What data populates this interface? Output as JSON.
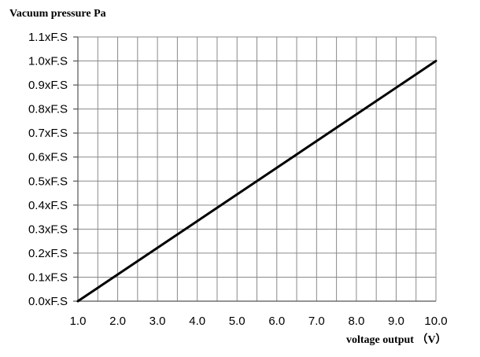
{
  "chart_data": {
    "type": "line",
    "title": "Vacuum pressure Pa",
    "xlabel": "voltage output （V）",
    "ylabel": "",
    "xlim": [
      1.0,
      10.0
    ],
    "ylim": [
      0.0,
      1.1
    ],
    "grid": true,
    "x_ticks": [
      "1.0",
      "2.0",
      "3.0",
      "4.0",
      "5.0",
      "6.0",
      "7.0",
      "8.0",
      "9.0",
      "10.0"
    ],
    "y_ticks": [
      "0.0xF.S",
      "0.1xF.S",
      "0.2xF.S",
      "0.3xF.S",
      "0.4xF.S",
      "0.5xF.S",
      "0.6xF.S",
      "0.7xF.S",
      "0.8xF.S",
      "0.9xF.S",
      "1.0xF.S",
      "1.1xF.S"
    ],
    "x_tick_values": [
      1,
      2,
      3,
      4,
      5,
      6,
      7,
      8,
      9,
      10
    ],
    "y_tick_values": [
      0.0,
      0.1,
      0.2,
      0.3,
      0.4,
      0.5,
      0.6,
      0.7,
      0.8,
      0.9,
      1.0,
      1.1
    ],
    "series": [
      {
        "x": [
          1.0,
          10.0
        ],
        "y": [
          0.0,
          1.0
        ],
        "color": "#000000"
      }
    ]
  }
}
